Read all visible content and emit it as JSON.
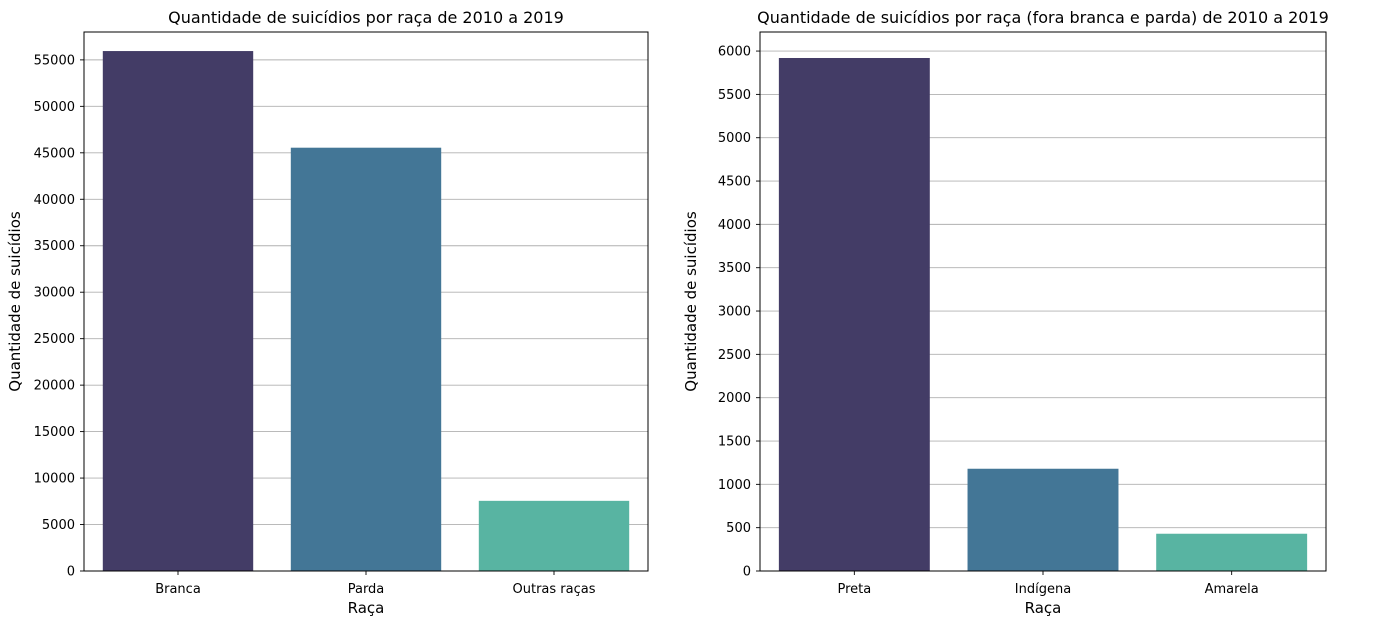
{
  "chart_data": [
    {
      "type": "bar",
      "title": "Quantidade de suicídios por raça de 2010 a 2019",
      "xlabel": "Raça",
      "ylabel": "Quantidade de suicídios",
      "categories": [
        "Branca",
        "Parda",
        "Outras raças"
      ],
      "values": [
        55950,
        45550,
        7550
      ],
      "colors": [
        "#433c66",
        "#437696",
        "#58b4a2"
      ],
      "ylim": [
        0,
        58000
      ],
      "yticks": [
        0,
        5000,
        10000,
        15000,
        20000,
        25000,
        30000,
        35000,
        40000,
        45000,
        50000,
        55000
      ],
      "grid": "y"
    },
    {
      "type": "bar",
      "title": "Quantidade de suicídios por raça (fora branca e parda) de 2010 a 2019",
      "xlabel": "Raça",
      "ylabel": "Quantidade de suicídios",
      "categories": [
        "Preta",
        "Indígena",
        "Amarela"
      ],
      "values": [
        5920,
        1180,
        430
      ],
      "colors": [
        "#433c66",
        "#437696",
        "#58b4a2"
      ],
      "ylim": [
        0,
        6220
      ],
      "yticks": [
        0,
        500,
        1000,
        1500,
        2000,
        2500,
        3000,
        3500,
        4000,
        4500,
        5000,
        5500,
        6000
      ],
      "grid": "y"
    }
  ]
}
